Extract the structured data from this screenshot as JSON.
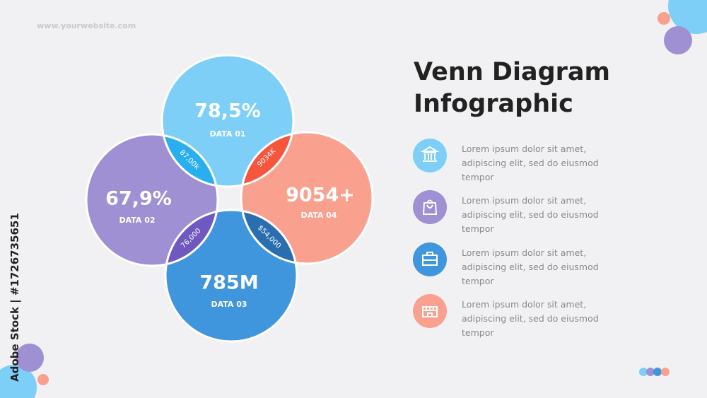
{
  "header": {
    "website": "www.yourwebsite.com",
    "title": "Venn Diagram Infographic"
  },
  "venn": {
    "sets": [
      {
        "value": "78,5%",
        "label": "DATA 01"
      },
      {
        "value": "67,9%",
        "label": "DATA 02"
      },
      {
        "value": "785M",
        "label": "DATA 03"
      },
      {
        "value": "9054+",
        "label": "DATA 04"
      }
    ],
    "intersections": [
      "87,00k",
      "9034K",
      "76,000",
      "$54,000"
    ]
  },
  "items": [
    {
      "text": "Lorem ipsum dolor sit amet, adipiscing elit, sed do eiusmod tempor"
    },
    {
      "text": "Lorem ipsum dolor sit amet, adipiscing elit, sed do eiusmod tempor"
    },
    {
      "text": "Lorem ipsum dolor sit amet, adipiscing elit, sed do eiusmod tempor"
    },
    {
      "text": "Lorem ipsum dolor sit amet, adipiscing elit, sed do eiusmod tempor"
    }
  ],
  "watermark": "Adobe Stock | #1726735651"
}
